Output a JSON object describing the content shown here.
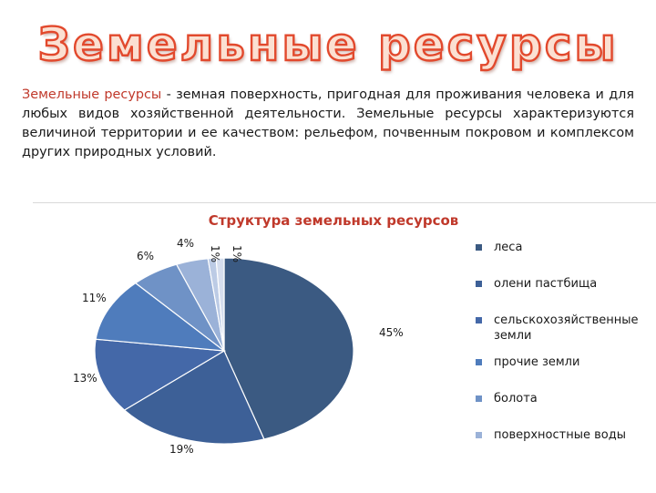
{
  "slide": {
    "title": "Земельные  ресурсы",
    "intro_term": "Земельные ресурсы",
    "intro_rest": " - земная поверхность, пригодная для проживания человека и для любых видов хозяйственной деятельности. Земельные ресурсы характеризуются величиной территории и ее качеством: рельефом, почвенным покровом и комплексом других природных условий."
  },
  "colors": {
    "title_fill": "#fbe0d2",
    "title_outline": "#e2492d",
    "accent": "#c0392b"
  },
  "chart_data": {
    "type": "pie",
    "title": "Структура земельных ресурсов",
    "legend_position": "right",
    "slices": [
      {
        "label": "леса",
        "value": 45,
        "data_label": "45%",
        "color": "#3b5a82"
      },
      {
        "label": "олени пастбища",
        "value": 19,
        "data_label": "19%",
        "color": "#3d6097"
      },
      {
        "label": "сельскохозяйственные земли",
        "value": 13,
        "data_label": "13%",
        "color": "#4468a8"
      },
      {
        "label": "прочие земли",
        "value": 11,
        "data_label": "11%",
        "color": "#4f7cbc"
      },
      {
        "label": "болота",
        "value": 6,
        "data_label": "6%",
        "color": "#6f92c6"
      },
      {
        "label": "поверхностные воды",
        "value": 4,
        "data_label": "4%",
        "color": "#9bb2d8"
      },
      {
        "label": "",
        "value": 1,
        "data_label": "1%",
        "color": "#bccbe5"
      },
      {
        "label": "",
        "value": 1,
        "data_label": "1%",
        "color": "#d6deee"
      }
    ]
  }
}
